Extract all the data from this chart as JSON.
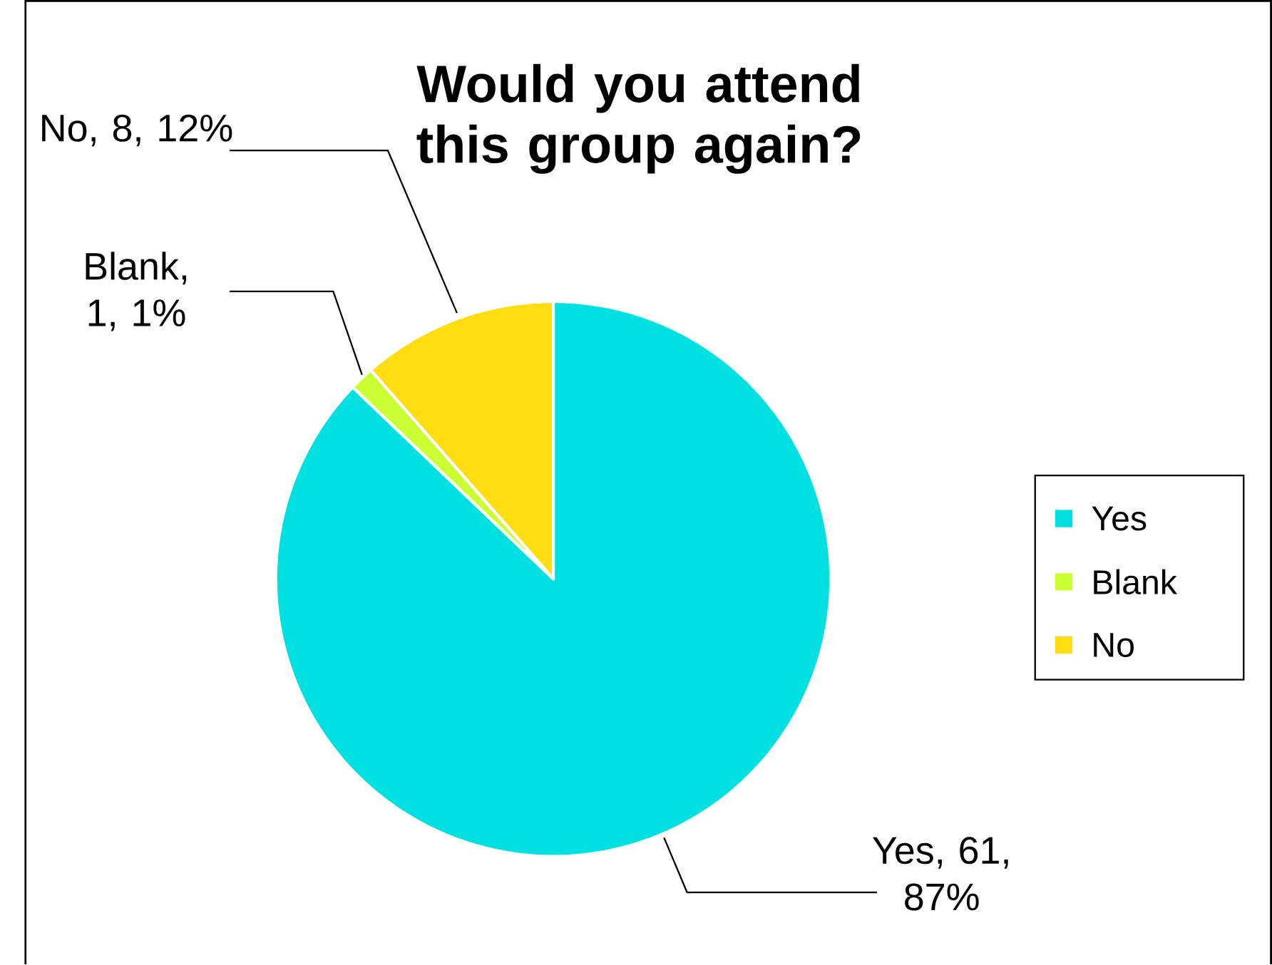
{
  "chart_data": {
    "type": "pie",
    "title": "Would you attend this group again?",
    "categories": [
      "Yes",
      "Blank",
      "No"
    ],
    "values": [
      61,
      1,
      8
    ],
    "colors": [
      "#00e0e0",
      "#ccff33",
      "#ffdd11"
    ],
    "value_labels": [
      "Yes, 61, 87%",
      "Blank, 1, 1%",
      "No, 8, 12%"
    ],
    "legend": "right"
  }
}
